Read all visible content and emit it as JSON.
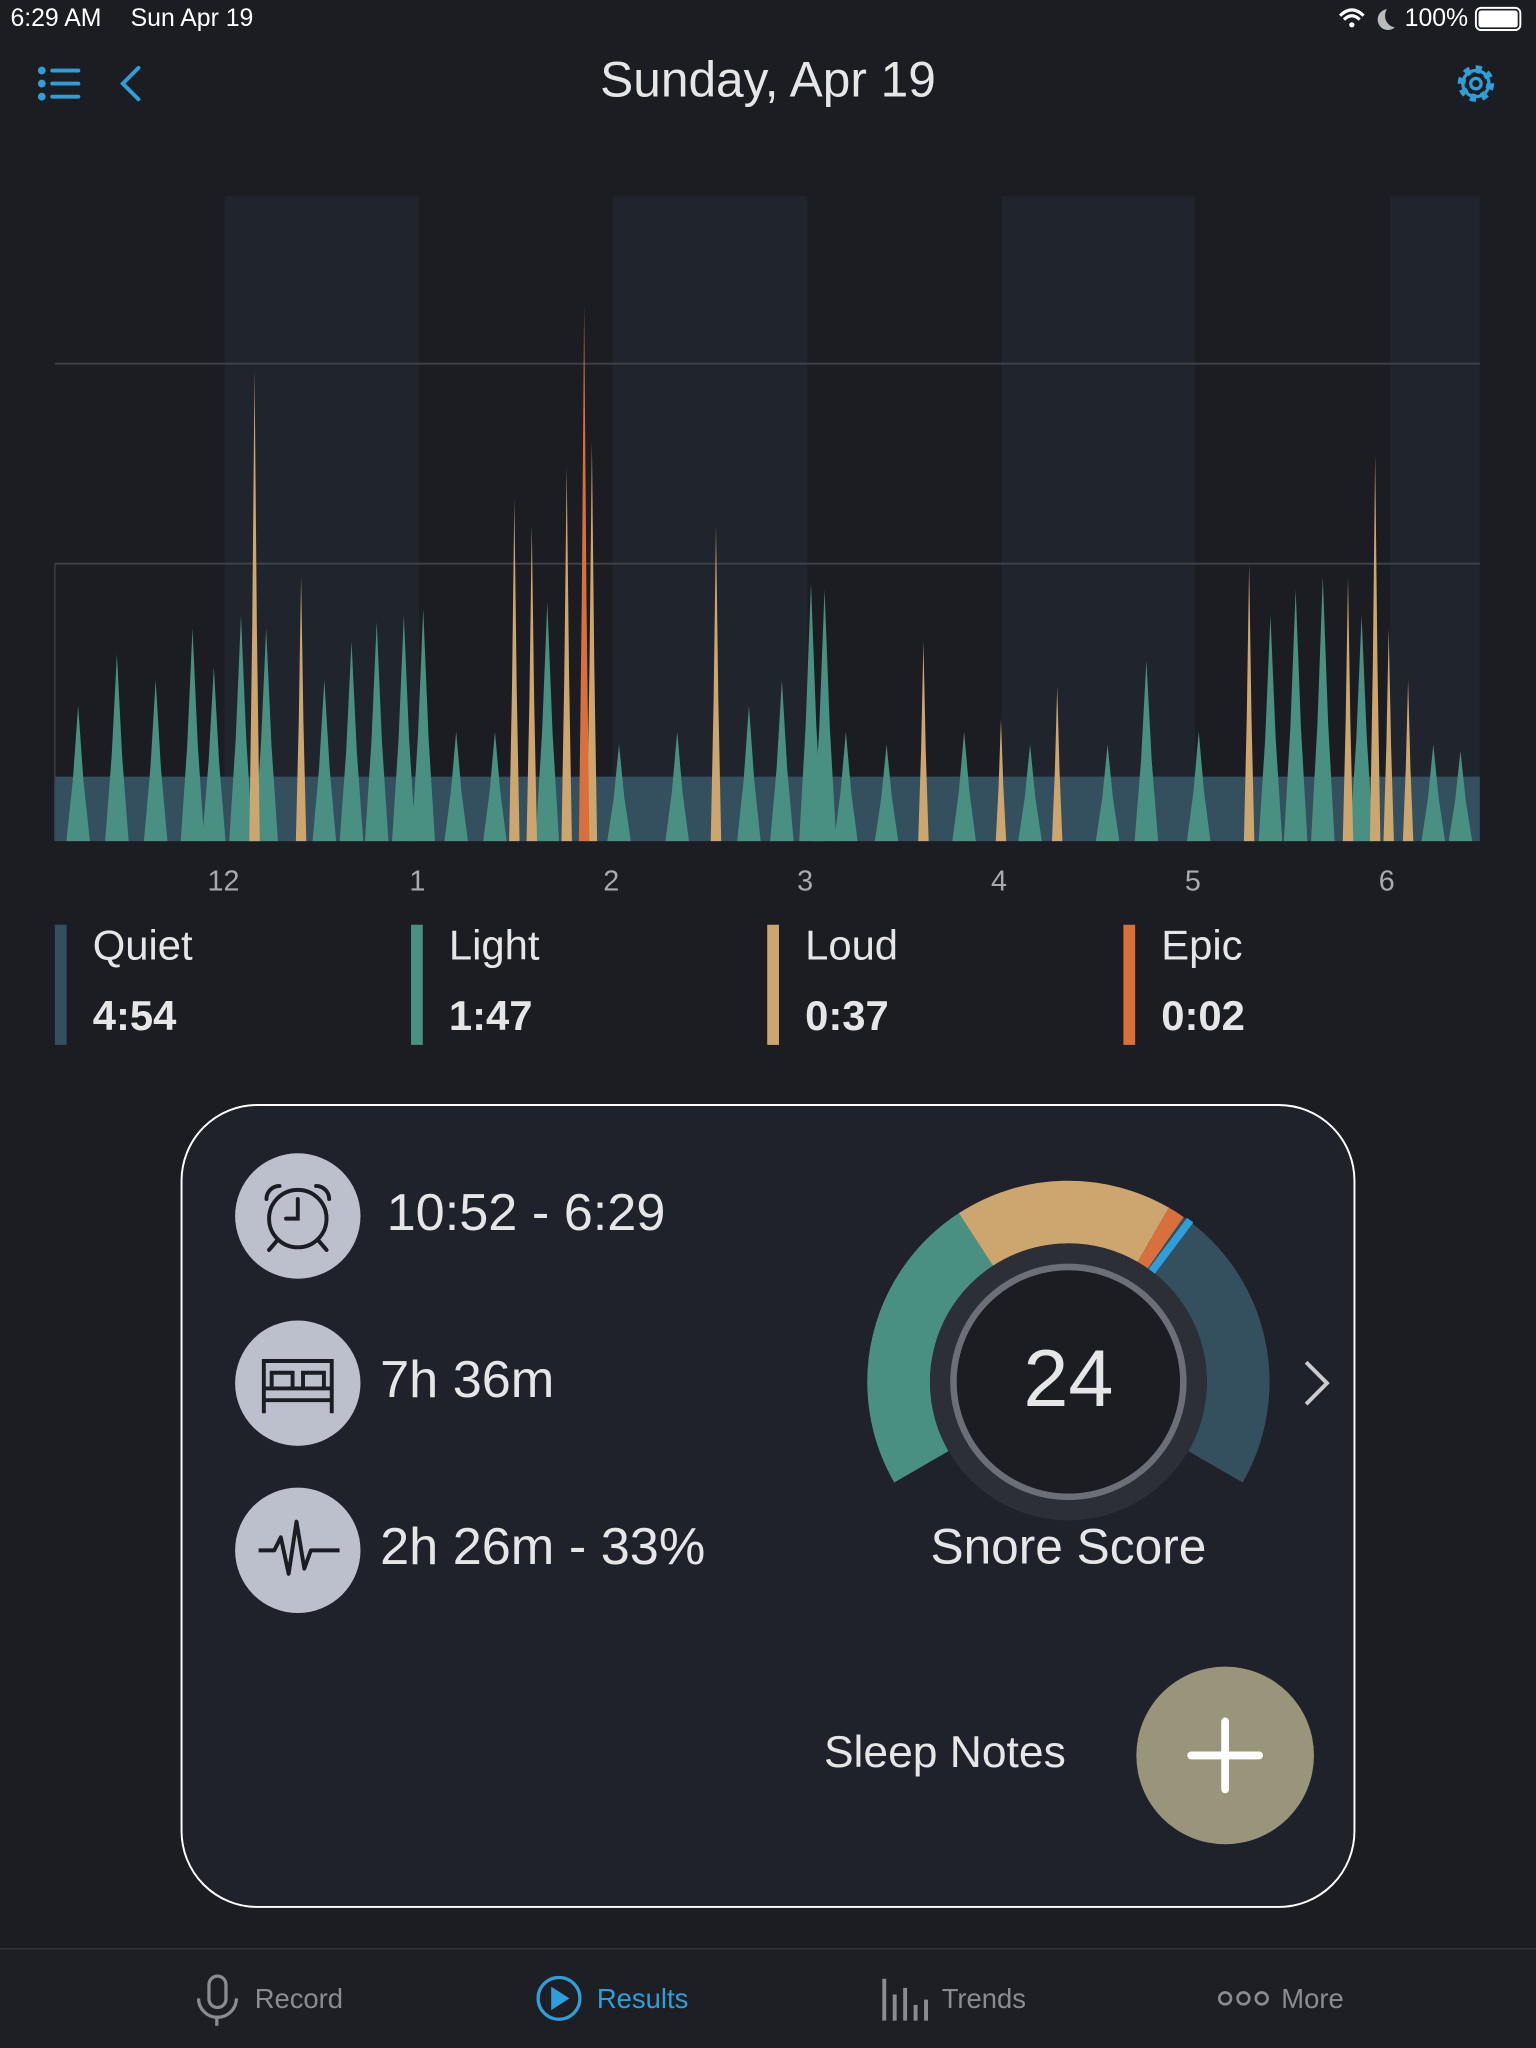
{
  "status_bar": {
    "time": "6:29 AM",
    "date": "Sun Apr 19",
    "battery": "100%"
  },
  "header": {
    "title": "Sunday, Apr 19"
  },
  "chart_data": {
    "type": "waveform",
    "xlim": [
      -0.87,
      6.48
    ],
    "xticks": [
      {
        "value": 0,
        "label": "12"
      },
      1,
      2,
      3,
      4,
      5,
      6
    ],
    "ylim": [
      0,
      100
    ],
    "reference_lines": [
      43,
      74
    ],
    "series": [
      {
        "name": "Quiet",
        "color": "#34505e",
        "values": [
          10
        ]
      },
      {
        "name": "Light",
        "color": "#4a9082",
        "x": [
          -0.75,
          -0.55,
          -0.35,
          -0.16,
          -0.05,
          0.09,
          0.22,
          0.52,
          0.66,
          0.79,
          0.93,
          1.03,
          1.2,
          1.4,
          1.67,
          2.04,
          2.34,
          2.71,
          2.88,
          3.03,
          3.1,
          3.21,
          3.42,
          3.82,
          4.16,
          4.56,
          4.76,
          5.03,
          5.4,
          5.53,
          5.67,
          5.87,
          6.24,
          6.38
        ],
        "values": [
          21,
          29,
          25,
          33,
          27,
          35,
          33,
          25,
          31,
          34,
          35,
          36,
          17,
          17,
          37,
          15,
          17,
          21,
          25,
          40,
          39,
          17,
          15,
          17,
          15,
          15,
          28,
          17,
          35,
          39,
          41,
          35,
          15,
          14
        ]
      },
      {
        "name": "Loud",
        "color": "#cda56f",
        "x": [
          0.16,
          0.4,
          1.5,
          1.59,
          1.77,
          1.9,
          2.54,
          3.61,
          4.01,
          4.3,
          5.29,
          5.8,
          5.94,
          6.01,
          6.11
        ],
        "values": [
          73,
          41,
          53,
          49,
          58,
          62,
          49,
          31,
          19,
          24,
          43,
          41,
          60,
          33,
          25
        ]
      },
      {
        "name": "Epic",
        "color": "#d9703c",
        "x": [
          1.86
        ],
        "values": [
          83
        ]
      }
    ]
  },
  "legend": [
    "4:54",
    "1:47",
    "0:37",
    "0:02"
  ],
  "summary": {
    "time_range": "10:52 - 6:29",
    "duration": "7h 36m",
    "snoring": "2h 26m - 33%"
  },
  "snore_score": {
    "value": 24,
    "label": "Snore Score"
  },
  "sleep_notes": {
    "label": "Sleep Notes"
  },
  "tabs": [
    "Record",
    "Results",
    "Trends",
    "More"
  ]
}
